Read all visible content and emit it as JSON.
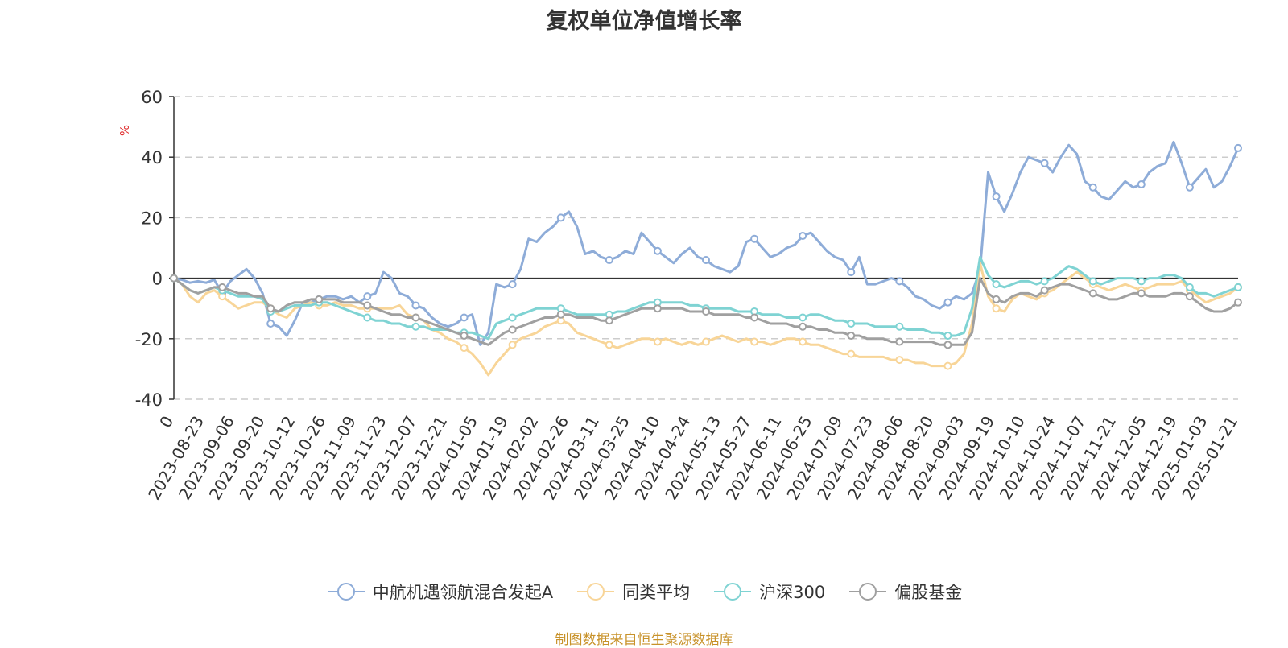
{
  "title": "复权单位净值增长率",
  "source_note": "制图数据来自恒生聚源数据库",
  "chart_data": {
    "type": "line",
    "title": "复权单位净值增长率",
    "ylabel": "%",
    "ylim": [
      -40,
      60
    ],
    "yticks": [
      60,
      40,
      20,
      0,
      -20,
      -40
    ],
    "x_tick_labels": [
      "0",
      "2023-08-23",
      "2023-09-06",
      "2023-09-20",
      "2023-10-12",
      "2023-10-26",
      "2023-11-09",
      "2023-11-23",
      "2023-12-07",
      "2023-12-21",
      "2024-01-05",
      "2024-01-19",
      "2024-02-02",
      "2024-02-26",
      "2024-03-11",
      "2024-03-25",
      "2024-04-10",
      "2024-04-24",
      "2024-05-13",
      "2024-05-27",
      "2024-06-11",
      "2024-06-25",
      "2024-07-09",
      "2024-07-23",
      "2024-08-06",
      "2024-08-20",
      "2024-09-03",
      "2024-09-19",
      "2024-10-10",
      "2024-10-24",
      "2024-11-07",
      "2024-11-21",
      "2024-12-05",
      "2024-12-19",
      "2025-01-03",
      "2025-01-21"
    ],
    "legend_position": "bottom",
    "grid": true,
    "series": [
      {
        "name": "中航机遇领航混合发起A",
        "color": "#8eacd8",
        "values": [
          0,
          -0.5,
          -1.5,
          -1,
          -1.5,
          -0.5,
          -5,
          -1,
          1,
          3,
          0,
          -5,
          -15,
          -16,
          -19,
          -14,
          -8,
          -8,
          -7,
          -6,
          -6,
          -7,
          -6,
          -8,
          -6,
          -5,
          2,
          0,
          -5,
          -6,
          -9,
          -10,
          -13,
          -15,
          -16,
          -15,
          -13,
          -12,
          -22,
          -18,
          -2,
          -3,
          -2,
          3,
          13,
          12,
          15,
          17,
          20,
          22,
          17,
          8,
          9,
          7,
          6,
          7,
          9,
          8,
          15,
          12,
          9,
          7,
          5,
          8,
          10,
          7,
          6,
          4,
          3,
          2,
          4,
          12,
          13,
          10,
          7,
          8,
          10,
          11,
          14,
          15,
          12,
          9,
          7,
          6,
          2,
          7,
          -2,
          -2,
          -1,
          0,
          -1,
          -3,
          -6,
          -7,
          -9,
          -10,
          -8,
          -6,
          -7,
          -5,
          3,
          35,
          27,
          22,
          28,
          35,
          40,
          39,
          38,
          35,
          40,
          44,
          41,
          32,
          30,
          27,
          26,
          29,
          32,
          30,
          31,
          35,
          37,
          38,
          45,
          38,
          30,
          33,
          36,
          30,
          32,
          37,
          43
        ]
      },
      {
        "name": "同类平均",
        "color": "#f8d598",
        "values": [
          0,
          -2,
          -6,
          -8,
          -5,
          -4,
          -6,
          -8,
          -10,
          -9,
          -8,
          -8,
          -10,
          -12,
          -13,
          -10,
          -9,
          -8,
          -9,
          -9,
          -8,
          -9,
          -9,
          -10,
          -10,
          -10,
          -10,
          -10,
          -9,
          -12,
          -13,
          -14,
          -17,
          -18,
          -20,
          -21,
          -23,
          -25,
          -28,
          -32,
          -28,
          -25,
          -22,
          -20,
          -19,
          -18,
          -16,
          -15,
          -14,
          -15,
          -18,
          -19,
          -20,
          -21,
          -22,
          -23,
          -22,
          -21,
          -20,
          -20,
          -21,
          -20,
          -21,
          -22,
          -21,
          -22,
          -21,
          -20,
          -19,
          -20,
          -21,
          -20,
          -21,
          -21,
          -22,
          -21,
          -20,
          -20,
          -21,
          -22,
          -22,
          -23,
          -24,
          -25,
          -25,
          -26,
          -26,
          -26,
          -26,
          -27,
          -27,
          -27,
          -28,
          -28,
          -29,
          -29,
          -29,
          -28,
          -25,
          -15,
          5,
          -6,
          -10,
          -11,
          -7,
          -5,
          -6,
          -7,
          -5,
          -4,
          -2,
          0,
          2,
          0,
          -2,
          -3,
          -4,
          -3,
          -2,
          -3,
          -4,
          -3,
          -2,
          -2,
          -2,
          -1,
          -4,
          -6,
          -8,
          -7,
          -6,
          -5,
          -3
        ]
      },
      {
        "name": "沪深300",
        "color": "#7fd3d3",
        "values": [
          0,
          -2,
          -4,
          -5,
          -4,
          -3,
          -4,
          -5,
          -6,
          -6,
          -6,
          -7,
          -11,
          -11,
          -10,
          -9,
          -9,
          -9,
          -8,
          -8,
          -9,
          -10,
          -11,
          -12,
          -13,
          -14,
          -14,
          -15,
          -15,
          -16,
          -16,
          -16,
          -17,
          -17,
          -17,
          -18,
          -18,
          -18,
          -19,
          -20,
          -15,
          -14,
          -13,
          -12,
          -11,
          -10,
          -10,
          -10,
          -10,
          -11,
          -12,
          -12,
          -12,
          -12,
          -12,
          -11,
          -11,
          -10,
          -9,
          -8,
          -8,
          -8,
          -8,
          -8,
          -9,
          -9,
          -10,
          -10,
          -10,
          -10,
          -11,
          -11,
          -11,
          -12,
          -12,
          -12,
          -13,
          -13,
          -13,
          -12,
          -12,
          -13,
          -14,
          -14,
          -15,
          -15,
          -15,
          -16,
          -16,
          -16,
          -16,
          -17,
          -17,
          -17,
          -18,
          -18,
          -19,
          -19,
          -18,
          -10,
          7,
          1,
          -2,
          -3,
          -2,
          -1,
          -1,
          -2,
          -1,
          0,
          2,
          4,
          3,
          1,
          -1,
          -2,
          -1,
          0,
          0,
          0,
          -1,
          0,
          0,
          1,
          1,
          0,
          -3,
          -5,
          -5,
          -6,
          -5,
          -4,
          -3
        ]
      },
      {
        "name": "偏股基金",
        "color": "#a0a0a0",
        "values": [
          0,
          -2,
          -4,
          -5,
          -4,
          -3,
          -3,
          -4,
          -5,
          -5,
          -6,
          -6,
          -10,
          -11,
          -9,
          -8,
          -8,
          -7,
          -7,
          -7,
          -7,
          -8,
          -8,
          -8,
          -9,
          -10,
          -11,
          -12,
          -12,
          -13,
          -13,
          -14,
          -15,
          -16,
          -17,
          -18,
          -19,
          -20,
          -21,
          -22,
          -20,
          -18,
          -17,
          -16,
          -15,
          -14,
          -13,
          -13,
          -12,
          -12,
          -13,
          -13,
          -13,
          -14,
          -14,
          -13,
          -12,
          -11,
          -10,
          -10,
          -10,
          -10,
          -10,
          -10,
          -11,
          -11,
          -11,
          -12,
          -12,
          -12,
          -12,
          -13,
          -13,
          -14,
          -15,
          -15,
          -15,
          -16,
          -16,
          -16,
          -17,
          -17,
          -18,
          -18,
          -19,
          -19,
          -20,
          -20,
          -20,
          -21,
          -21,
          -21,
          -21,
          -21,
          -21,
          -22,
          -22,
          -22,
          -22,
          -18,
          0,
          -5,
          -7,
          -8,
          -6,
          -5,
          -5,
          -6,
          -4,
          -3,
          -2,
          -2,
          -3,
          -4,
          -5,
          -6,
          -7,
          -7,
          -6,
          -5,
          -5,
          -6,
          -6,
          -6,
          -5,
          -5,
          -6,
          -8,
          -10,
          -11,
          -11,
          -10,
          -8
        ]
      }
    ]
  }
}
